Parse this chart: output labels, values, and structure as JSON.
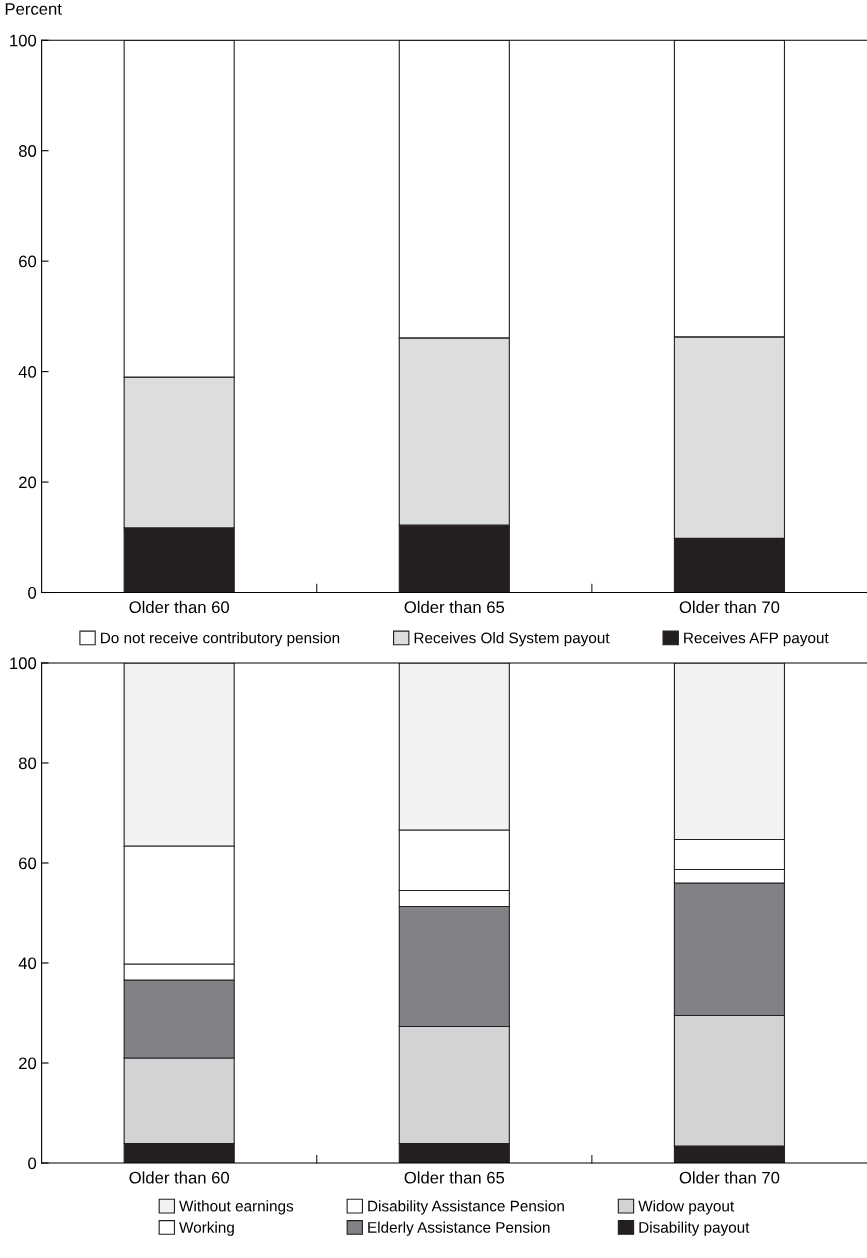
{
  "chart_data": [
    {
      "type": "bar",
      "stacked": true,
      "ylabel": "Percent",
      "categories": [
        "Older than 60",
        "Older than 65",
        "Older than 70"
      ],
      "ylim": [
        0,
        100
      ],
      "yticks": [
        0,
        20,
        40,
        60,
        80,
        100
      ],
      "grid": false,
      "legend": "bottom",
      "series": [
        {
          "name": "Receives AFP payout",
          "color": "#231f20",
          "values": [
            11.7,
            12.2,
            9.8
          ]
        },
        {
          "name": "Receives Old System payout",
          "color": "#dcdddf",
          "values": [
            27.3,
            33.9,
            36.5
          ]
        },
        {
          "name": "Do not receive contributory pension",
          "color": "#ffffff",
          "values": [
            61.0,
            53.9,
            53.7
          ]
        }
      ]
    },
    {
      "type": "bar",
      "stacked": true,
      "categories": [
        "Older than 60",
        "Older than 65",
        "Older than 70"
      ],
      "ylim": [
        0,
        100
      ],
      "yticks": [
        0,
        20,
        40,
        60,
        80,
        100
      ],
      "grid": false,
      "legend": "bottom",
      "series": [
        {
          "name": "Disability payout",
          "color": "#231f20",
          "values": [
            3.9,
            3.9,
            3.4
          ]
        },
        {
          "name": "Widow payout",
          "color": "#d1d3d4",
          "values": [
            17.1,
            23.4,
            26.1
          ]
        },
        {
          "name": "Elderly Assistance Pension",
          "color": "#808285",
          "values": [
            15.6,
            24.0,
            26.5
          ]
        },
        {
          "name": "Disability Assistance Pension",
          "color": "#ffffff",
          "values": [
            3.2,
            3.2,
            2.7
          ]
        },
        {
          "name": "Working",
          "color": "#ffffff",
          "values": [
            23.6,
            12.1,
            6.0
          ]
        },
        {
          "name": "Without earnings",
          "color": "#f1f2f2",
          "values": [
            36.6,
            33.4,
            35.3
          ]
        }
      ]
    }
  ]
}
